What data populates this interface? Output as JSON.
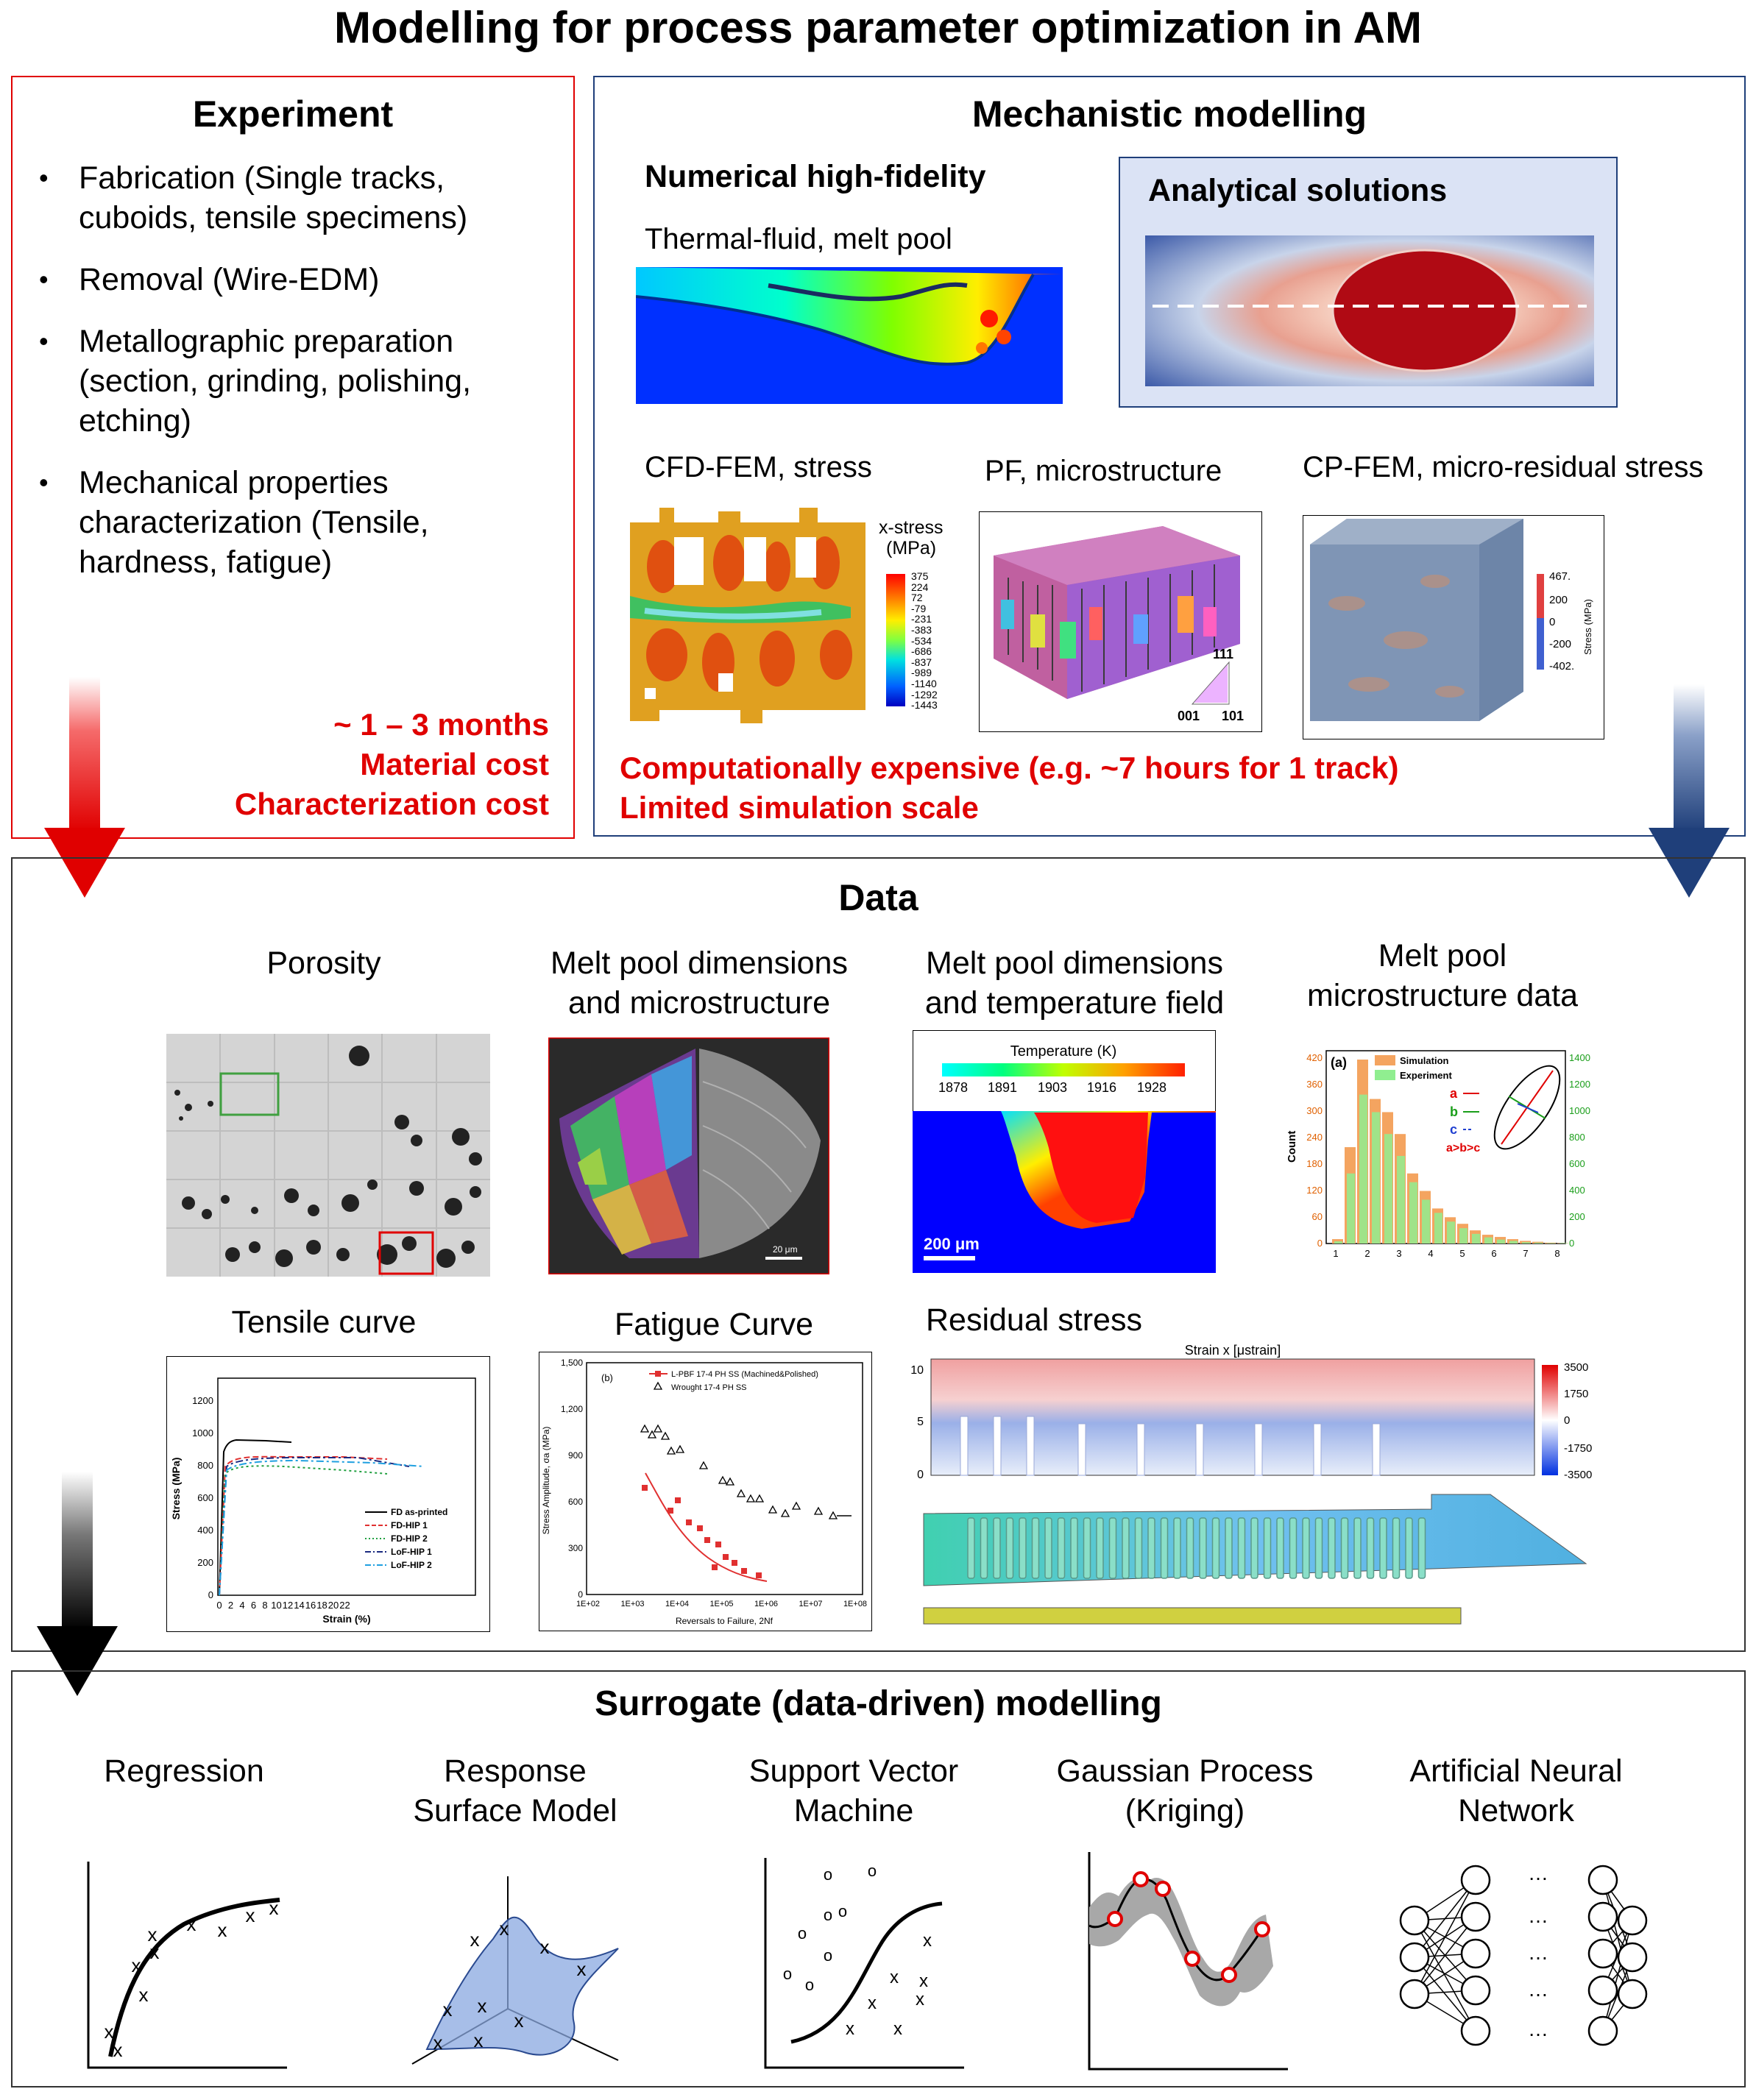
{
  "main_title": "Modelling for process parameter optimization in AM",
  "experiment": {
    "title": "Experiment",
    "items": [
      "Fabrication (Single tracks, cuboids, tensile specimens)",
      "Removal  (Wire-EDM)",
      "Metallographic preparation (section, grinding, polishing, etching)",
      "Mechanical properties characterization (Tensile, hardness, fatigue)"
    ],
    "cost_lines": [
      "~ 1 – 3 months",
      "Material cost",
      "Characterization cost"
    ]
  },
  "mechanistic": {
    "title": "Mechanistic modelling",
    "numerical_title": "Numerical high-fidelity",
    "thermal_label": "Thermal-fluid, melt pool",
    "analytical_title": "Analytical solutions",
    "cfd_label": "CFD-FEM, stress",
    "pf_label": "PF, microstructure",
    "cp_label": "CP-FEM, micro-residual stress",
    "xstress_title": "x-stress",
    "xstress_unit": "(MPa)",
    "xstress_ticks": [
      "375",
      "224",
      "72",
      "-79",
      "-231",
      "-383",
      "-534",
      "-686",
      "-837",
      "-989",
      "-1140",
      "-1292",
      "-1443"
    ],
    "ipf_labels": [
      "111",
      "001",
      "101"
    ],
    "cp_ticks": [
      "467.",
      "200",
      "0",
      "-200",
      "-402."
    ],
    "cp_axis": "Stress (MPa)",
    "cost_lines": [
      "Computationally expensive (e.g. ~7 hours for 1 track)",
      "Limited simulation scale"
    ]
  },
  "data_section": {
    "title": "Data",
    "porosity_label": "Porosity",
    "mp_micro_label": [
      "Melt pool dimensions",
      "and microstructure"
    ],
    "mp_temp_label": [
      "Melt pool dimensions",
      "and temperature field"
    ],
    "mp_data_label": [
      "Melt pool",
      "microstructure data"
    ],
    "tensile_label": "Tensile curve",
    "fatigue_label": "Fatigue Curve",
    "residual_label": "Residual stress",
    "scale_bar_micro": "20 μm",
    "temperature": {
      "title": "Temperature (K)",
      "ticks": [
        "1878",
        "1891",
        "1903",
        "1916",
        "1928"
      ],
      "scale_bar": "200 μm"
    },
    "histogram": {
      "panel": "(a)",
      "legend": [
        "Simulation",
        "Experiment"
      ],
      "ylabel": "Count",
      "left_ticks": [
        "0",
        "60",
        "120",
        "180",
        "240",
        "300",
        "360",
        "420"
      ],
      "right_ticks": [
        "0",
        "200",
        "400",
        "600",
        "800",
        "1000",
        "1200",
        "1400"
      ],
      "x_ticks": [
        "1",
        "2",
        "3",
        "4",
        "5",
        "6",
        "7",
        "8"
      ],
      "abc": [
        "a",
        "b",
        "c"
      ],
      "inequality": "a>b>c",
      "colors": {
        "simulation": "#f4a460",
        "experiment": "#90ee90",
        "a": "#e00000",
        "b": "#1a9e1a",
        "c": "#1f3fd0"
      }
    },
    "tensile": {
      "ylabel": "Stress (MPa)",
      "xlabel": "Strain (%)",
      "y_ticks": [
        "0",
        "200",
        "400",
        "600",
        "800",
        "1000",
        "1200"
      ],
      "x_ticks": [
        "0",
        "2",
        "4",
        "6",
        "8",
        "10",
        "12",
        "14",
        "16",
        "18",
        "20",
        "22"
      ],
      "legend": [
        "FD as-printed",
        "FD-HIP 1",
        "FD-HIP 2",
        "LoF-HIP 1",
        "LoF-HIP 2"
      ]
    },
    "fatigue": {
      "panel": "(b)",
      "legend": [
        "L-PBF 17-4 PH SS (Machined&Polished)",
        "Wrought 17-4 PH SS"
      ],
      "ylabel": "Stress Amplitude, σa (MPa)",
      "xlabel": "Reversals to Failure, 2Nf",
      "y_ticks": [
        "0",
        "300",
        "600",
        "900",
        "1,200",
        "1,500"
      ],
      "x_ticks": [
        "1E+02",
        "1E+03",
        "1E+04",
        "1E+05",
        "1E+06",
        "1E+07",
        "1E+08"
      ]
    },
    "residual": {
      "title": "Strain x [μstrain]",
      "y_ticks": [
        "0",
        "5",
        "10"
      ],
      "scale_ticks": [
        "3500",
        "1750",
        "0",
        "-1750",
        "-3500"
      ]
    }
  },
  "surrogate": {
    "title": "Surrogate (data-driven) modelling",
    "methods": [
      [
        "Regression"
      ],
      [
        "Response",
        "Surface Model"
      ],
      [
        "Support Vector",
        "Machine"
      ],
      [
        "Gaussian Process",
        "(Kriging)"
      ],
      [
        "Artificial Neural",
        "Network"
      ]
    ],
    "ellipsis": "…",
    "marker": "x",
    "circle": "o"
  },
  "colors": {
    "accent_red": "#e00000",
    "frame_blue": "#1f3f7a",
    "analytical_bg": "#dbe3f5",
    "arrow_blue": "#1f3f7a"
  }
}
